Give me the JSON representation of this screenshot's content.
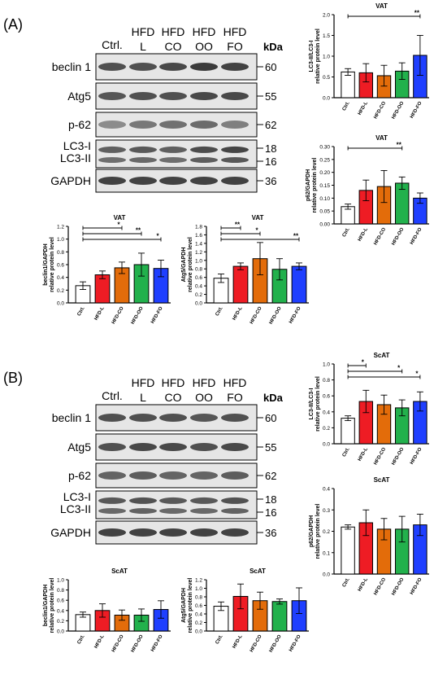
{
  "panels": [
    {
      "label": "(A)",
      "blot": {
        "lanes": [
          {
            "top": "",
            "bottom": "Ctrl."
          },
          {
            "top": "HFD",
            "bottom": "L"
          },
          {
            "top": "HFD",
            "bottom": "CO"
          },
          {
            "top": "HFD",
            "bottom": "OO"
          },
          {
            "top": "HFD",
            "bottom": "FO"
          }
        ],
        "kda_header": "kDa",
        "rows": [
          {
            "proteins": [
              "beclin 1"
            ],
            "kda": [
              "60"
            ],
            "bands": [
              0.85,
              0.85,
              0.9,
              1.0,
              0.95
            ]
          },
          {
            "proteins": [
              "Atg5"
            ],
            "kda": [
              "55"
            ],
            "bands": [
              0.8,
              0.85,
              0.85,
              0.9,
              0.9
            ]
          },
          {
            "proteins": [
              "p-62"
            ],
            "kda": [
              "62"
            ],
            "bands": [
              0.4,
              0.55,
              0.6,
              0.65,
              0.5
            ]
          },
          {
            "proteins": [
              "LC3-I",
              "LC3-II"
            ],
            "kda": [
              "18",
              "16"
            ],
            "bands": [
              0.8,
              0.85,
              0.8,
              0.95,
              1.0
            ]
          },
          {
            "proteins": [
              "GAPDH"
            ],
            "kda": [
              "36"
            ],
            "bands": [
              0.95,
              0.95,
              0.95,
              0.95,
              0.95
            ]
          }
        ]
      }
    },
    {
      "label": "(B)",
      "blot": {
        "lanes": [
          {
            "top": "",
            "bottom": "Ctrl."
          },
          {
            "top": "HFD",
            "bottom": "L"
          },
          {
            "top": "HFD",
            "bottom": "CO"
          },
          {
            "top": "HFD",
            "bottom": "OO"
          },
          {
            "top": "HFD",
            "bottom": "FO"
          }
        ],
        "kda_header": "kDa",
        "rows": [
          {
            "proteins": [
              "beclin 1"
            ],
            "kda": [
              "60"
            ],
            "bands": [
              0.85,
              0.85,
              0.85,
              0.8,
              0.85
            ]
          },
          {
            "proteins": [
              "Atg5"
            ],
            "kda": [
              "55"
            ],
            "bands": [
              0.85,
              0.9,
              0.9,
              0.85,
              0.9
            ]
          },
          {
            "proteins": [
              "p-62"
            ],
            "kda": [
              "62"
            ],
            "bands": [
              0.7,
              0.75,
              0.7,
              0.7,
              0.75
            ]
          },
          {
            "proteins": [
              "LC3-I",
              "LC3-II"
            ],
            "kda": [
              "18",
              "16"
            ],
            "bands": [
              0.85,
              0.9,
              0.85,
              0.85,
              0.9
            ]
          },
          {
            "proteins": [
              "GAPDH"
            ],
            "kda": [
              "36"
            ],
            "bands": [
              0.95,
              0.95,
              0.95,
              0.95,
              0.95
            ]
          }
        ]
      }
    }
  ],
  "colors": {
    "Ctrl.": "#ffffff",
    "HFD-L": "#ee1c24",
    "HFD-CO": "#e36c0a",
    "HFD-OO": "#22b14c",
    "HFD-FO": "#1f3fff"
  },
  "chart_data": [
    {
      "id": "vat-lc3",
      "type": "bar",
      "title": "VAT",
      "ylabel": [
        "LC3-II/LC3-I",
        "relative protein level"
      ],
      "categories": [
        "Ctrl.",
        "HFD-L",
        "HFD-CO",
        "HFD-OO",
        "HFD-FO"
      ],
      "values": [
        0.62,
        0.6,
        0.53,
        0.64,
        1.02
      ],
      "errors": [
        0.08,
        0.22,
        0.25,
        0.2,
        0.48
      ],
      "ylim": [
        0,
        2.0
      ],
      "yticks": [
        "0.0",
        "0.5",
        "1.0",
        "1.5",
        "2.0"
      ],
      "significance": [
        {
          "from": 0,
          "to": 4,
          "label": "**"
        }
      ]
    },
    {
      "id": "vat-p62",
      "type": "bar",
      "title": "VAT",
      "ylabel": [
        "p62/GAPDH",
        "relative protein level"
      ],
      "categories": [
        "Ctrl.",
        "HFD-L",
        "HFD-CO",
        "HFD-OO",
        "HFD-FO"
      ],
      "values": [
        0.067,
        0.13,
        0.145,
        0.158,
        0.1
      ],
      "errors": [
        0.01,
        0.04,
        0.062,
        0.024,
        0.02
      ],
      "ylim": [
        0,
        0.3
      ],
      "yticks": [
        "0.00",
        "0.05",
        "0.10",
        "0.15",
        "0.20",
        "0.25",
        "0.30"
      ],
      "significance": [
        {
          "from": 0,
          "to": 3,
          "label": "**"
        }
      ]
    },
    {
      "id": "vat-beclin",
      "type": "bar",
      "title": "VAT",
      "ylabel": [
        "beclin1/GAPDH",
        "relative protein level"
      ],
      "categories": [
        "Ctrl.",
        "HFD-L",
        "HFD-CO",
        "HFD-OO",
        "HFD-FO"
      ],
      "values": [
        0.27,
        0.44,
        0.55,
        0.6,
        0.54
      ],
      "errors": [
        0.06,
        0.06,
        0.09,
        0.18,
        0.13
      ],
      "ylim": [
        0,
        1.2
      ],
      "yticks": [
        "0.0",
        "0.2",
        "0.4",
        "0.6",
        "0.8",
        "1.0",
        "1.2"
      ],
      "significance": [
        {
          "from": 0,
          "to": 2,
          "label": "*"
        },
        {
          "from": 0,
          "to": 3,
          "label": "**"
        },
        {
          "from": 0,
          "to": 4,
          "label": "*"
        }
      ]
    },
    {
      "id": "vat-atg5",
      "type": "bar",
      "title": "VAT",
      "ylabel": [
        "Atg5/GAPDH",
        "relative protein level"
      ],
      "categories": [
        "Ctrl.",
        "HFD-L",
        "HFD-CO",
        "HFD-OO",
        "HFD-FO"
      ],
      "values": [
        0.58,
        0.86,
        1.04,
        0.79,
        0.86
      ],
      "errors": [
        0.1,
        0.08,
        0.38,
        0.25,
        0.08
      ],
      "ylim": [
        0,
        1.8
      ],
      "yticks": [
        "0.0",
        "0.2",
        "0.4",
        "0.6",
        "0.8",
        "1.0",
        "1.2",
        "1.4",
        "1.6",
        "1.8"
      ],
      "significance": [
        {
          "from": 0,
          "to": 1,
          "label": "**"
        },
        {
          "from": 0,
          "to": 2,
          "label": "*"
        },
        {
          "from": 0,
          "to": 4,
          "label": "**"
        }
      ]
    },
    {
      "id": "scat-lc3",
      "type": "bar",
      "title": "ScAT",
      "ylabel": [
        "LC3-II/LC3-I",
        "relative protein level"
      ],
      "categories": [
        "Ctrl.",
        "HFD-L",
        "HFD-CO",
        "HFD-OO",
        "HFD-FO"
      ],
      "values": [
        0.32,
        0.53,
        0.49,
        0.45,
        0.53
      ],
      "errors": [
        0.03,
        0.14,
        0.12,
        0.1,
        0.12
      ],
      "ylim": [
        0,
        1.0
      ],
      "yticks": [
        "0.0",
        "0.2",
        "0.4",
        "0.6",
        "0.8",
        "1.0"
      ],
      "significance": [
        {
          "from": 0,
          "to": 1,
          "label": "*"
        },
        {
          "from": 0,
          "to": 3,
          "label": "*"
        },
        {
          "from": 0,
          "to": 4,
          "label": "*"
        }
      ]
    },
    {
      "id": "scat-p62",
      "type": "bar",
      "title": "ScAT",
      "ylabel": [
        "p62/GAPDH",
        "relative protein level"
      ],
      "categories": [
        "Ctrl.",
        "HFD-L",
        "HFD-CO",
        "HFD-OO",
        "HFD-FO"
      ],
      "values": [
        0.22,
        0.24,
        0.21,
        0.21,
        0.23
      ],
      "errors": [
        0.01,
        0.06,
        0.05,
        0.06,
        0.05
      ],
      "ylim": [
        0,
        0.4
      ],
      "yticks": [
        "0.0",
        "0.1",
        "0.2",
        "0.3",
        "0.4"
      ],
      "significance": []
    },
    {
      "id": "scat-beclin",
      "type": "bar",
      "title": "ScAT",
      "ylabel": [
        "beclin1/GAPDH",
        "relative protein level"
      ],
      "categories": [
        "Ctrl.",
        "HFD-L",
        "HFD-CO",
        "HFD-OO",
        "HFD-FO"
      ],
      "values": [
        0.32,
        0.4,
        0.31,
        0.31,
        0.42
      ],
      "errors": [
        0.05,
        0.13,
        0.1,
        0.12,
        0.17
      ],
      "ylim": [
        0,
        1.0
      ],
      "yticks": [
        "0.0",
        "0.2",
        "0.4",
        "0.6",
        "0.8",
        "1.0"
      ],
      "significance": []
    },
    {
      "id": "scat-atg5",
      "type": "bar",
      "title": "ScAT",
      "ylabel": [
        "Atg5/GAPDH",
        "relative protein level"
      ],
      "categories": [
        "Ctrl.",
        "HFD-L",
        "HFD-CO",
        "HFD-OO",
        "HFD-FO"
      ],
      "values": [
        0.58,
        0.81,
        0.71,
        0.69,
        0.71
      ],
      "errors": [
        0.1,
        0.29,
        0.2,
        0.06,
        0.3
      ],
      "ylim": [
        0,
        1.2
      ],
      "yticks": [
        "0.0",
        "0.2",
        "0.4",
        "0.6",
        "0.8",
        "1.0",
        "1.2"
      ],
      "significance": []
    }
  ]
}
